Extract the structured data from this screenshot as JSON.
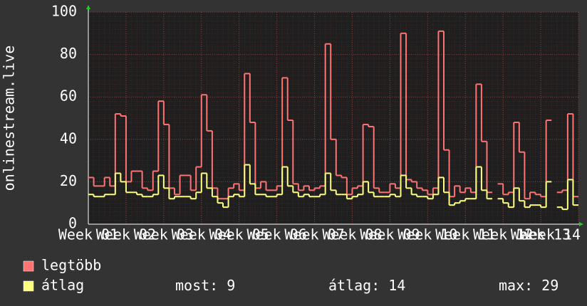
{
  "chart_data": {
    "type": "line",
    "y_label": "onlinestream.live",
    "xlim": [
      0,
      91
    ],
    "ylim": [
      0,
      100
    ],
    "yticks": [
      0,
      20,
      40,
      60,
      80,
      100
    ],
    "xticks": [
      {
        "value": 0,
        "label": "Week 01"
      },
      {
        "value": 7,
        "label": "Week 02"
      },
      {
        "value": 14,
        "label": "Week 03"
      },
      {
        "value": 21,
        "label": "Week 04"
      },
      {
        "value": 28,
        "label": "Week 05"
      },
      {
        "value": 35,
        "label": "Week 06"
      },
      {
        "value": 42,
        "label": "Week 07"
      },
      {
        "value": 49,
        "label": "Week 08"
      },
      {
        "value": 56,
        "label": "Week 09"
      },
      {
        "value": 63,
        "label": "Week 10"
      },
      {
        "value": 70,
        "label": "Week 11"
      },
      {
        "value": 77,
        "label": "Week 12"
      },
      {
        "value": 84,
        "label": "Week 13"
      },
      {
        "value": 91,
        "label": "Week 14"
      }
    ],
    "grid": true,
    "x": [
      0,
      1,
      2,
      3,
      4,
      5,
      6,
      7,
      8,
      9,
      10,
      11,
      12,
      13,
      14,
      15,
      16,
      17,
      18,
      19,
      20,
      21,
      22,
      23,
      24,
      25,
      26,
      27,
      28,
      29,
      30,
      31,
      32,
      33,
      34,
      35,
      36,
      37,
      38,
      39,
      40,
      41,
      42,
      43,
      44,
      45,
      46,
      47,
      48,
      49,
      50,
      51,
      52,
      53,
      54,
      55,
      56,
      57,
      58,
      59,
      60,
      61,
      62,
      63,
      64,
      65,
      66,
      67,
      68,
      69,
      70,
      71,
      72,
      73,
      74,
      75,
      76,
      77,
      78,
      79,
      80,
      81,
      82,
      83,
      84,
      85,
      86,
      87,
      88,
      89,
      90
    ],
    "series": [
      {
        "name": "legtöbb",
        "color": "#ff7373",
        "values": [
          22,
          18,
          18,
          22,
          18,
          52,
          51,
          20,
          25,
          25,
          17,
          16,
          25,
          58,
          47,
          17,
          14,
          23,
          23,
          16,
          27,
          61,
          44,
          17,
          12,
          12,
          17,
          19,
          16,
          71,
          48,
          17,
          20,
          16,
          16,
          18,
          69,
          49,
          19,
          16,
          18,
          16,
          17,
          18,
          85,
          40,
          23,
          22,
          14,
          17,
          18,
          47,
          46,
          17,
          15,
          15,
          19,
          17,
          90,
          21,
          20,
          17,
          16,
          14,
          17,
          91,
          35,
          13,
          18,
          15,
          17,
          15,
          66,
          39,
          15,
          null,
          19,
          14,
          15,
          48,
          34,
          12,
          15,
          14,
          13,
          49,
          null,
          15,
          16,
          52,
          13
        ]
      },
      {
        "name": "átlag",
        "color": "#ffff80",
        "values": [
          14,
          13,
          13,
          14,
          14,
          24,
          20,
          15,
          15,
          14,
          13,
          13,
          14,
          23,
          17,
          12,
          13,
          13,
          13,
          12,
          15,
          24,
          17,
          13,
          10,
          8,
          13,
          14,
          13,
          28,
          19,
          14,
          14,
          13,
          13,
          14,
          27,
          18,
          15,
          13,
          14,
          13,
          13,
          14,
          24,
          16,
          14,
          14,
          12,
          13,
          14,
          20,
          15,
          13,
          13,
          13,
          14,
          13,
          23,
          17,
          14,
          13,
          13,
          12,
          14,
          22,
          15,
          9,
          10,
          11,
          12,
          12,
          27,
          16,
          12,
          null,
          12,
          10,
          8,
          17,
          11,
          8,
          9,
          9,
          8,
          20,
          null,
          8,
          7,
          21,
          9
        ]
      }
    ],
    "stats": [
      {
        "label": "most:",
        "value": 9
      },
      {
        "label": "átlag:",
        "value": 14
      },
      {
        "label": "max:",
        "value": 29
      }
    ]
  }
}
